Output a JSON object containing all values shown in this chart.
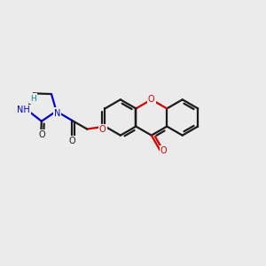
{
  "bg": "#ebebeb",
  "bond_color": "#1a1a1a",
  "N_color": "#0000cc",
  "O_color": "#cc0000",
  "NH_color": "#008888",
  "lw": 1.6,
  "xlim": [
    0.0,
    5.6
  ],
  "ylim": [
    0.5,
    5.2
  ],
  "figsize": [
    3.0,
    3.0
  ],
  "dpi": 100
}
